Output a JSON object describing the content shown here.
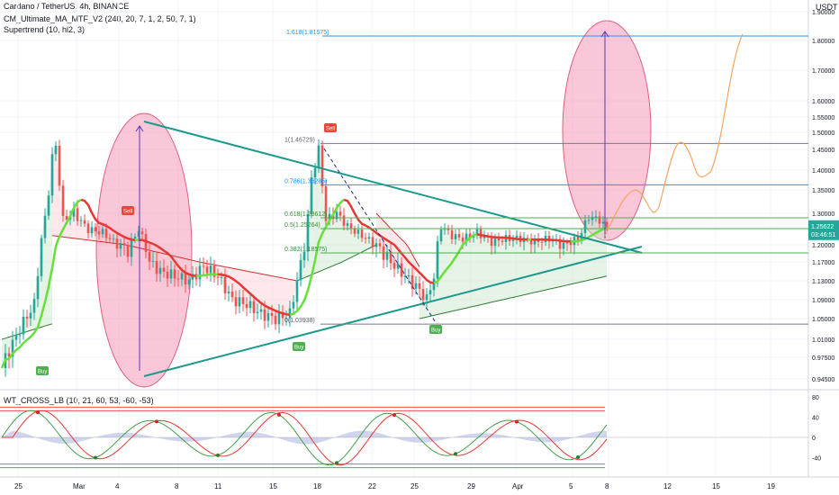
{
  "header": {
    "symbol_line": "Cardano / TetherUS, 4h, BINANCE",
    "indicator_1": "CM_Ultimate_MA_MTF_V2 (240, 20, 7, 1, 2, 50, 7, 1)",
    "indicator_2": "Supertrend (10, hl2, 3)",
    "currency": "USDT"
  },
  "oscillator": {
    "label": "WT_CROSS_LB (10, 21, 60, 53, -60, -53)"
  },
  "colors": {
    "bull_candle": "#26a69a",
    "bear_candle": "#ef5350",
    "ma_up": "#66e03a",
    "ma_down": "#e53935",
    "supertrend_up": "#2e7d32",
    "supertrend_down": "#d32f2f",
    "trendline": "#1b998b",
    "ellipse_fill": "#f48fb1",
    "arrow": "#5e35b1",
    "projection": "#f4a460",
    "price_badge": "#26a69a"
  },
  "chart_data": [
    {
      "type": "candlestick",
      "x_ticks": [
        "25",
        "Mar",
        "4",
        "8",
        "11",
        "15",
        "18",
        "22",
        "25",
        "29",
        "Apr",
        "5",
        "8",
        "12",
        "15",
        "19"
      ],
      "y_ticks": [
        "1.90000",
        "1.80000",
        "1.70000",
        "1.60000",
        "1.55000",
        "1.50000",
        "1.45000",
        "1.40000",
        "1.35000",
        "1.30000",
        "1.25000",
        "1.20000",
        "1.17000",
        "1.13000",
        "1.09000",
        "1.05000",
        "1.01000",
        "0.97500",
        "0.94500"
      ],
      "last_price": "1.25622",
      "price_badge_sub": "03:46:51",
      "fib_levels": [
        {
          "label": "1.618(1.81575)",
          "value": 1.81575
        },
        {
          "label": "1(1.46729)",
          "value": 1.46729
        },
        {
          "label": "0.786(1.36285)",
          "value": 1.36285
        },
        {
          "label": "0.618(1.28612)",
          "value": 1.28612
        },
        {
          "label": "0.5(1.25264)",
          "value": 1.25264
        },
        {
          "label": "0.382(1.18575)",
          "value": 1.18575
        },
        {
          "label": "0(1.03938)",
          "value": 1.03938
        }
      ],
      "signals": [
        {
          "label": "Buy"
        },
        {
          "label": "Sell"
        },
        {
          "label": "Buy"
        },
        {
          "label": "Sell"
        },
        {
          "label": "Buy"
        }
      ]
    },
    {
      "type": "line",
      "y_ticks": [
        "80",
        "40",
        "0",
        "-40"
      ],
      "levels": [
        53,
        60,
        -53,
        -60
      ]
    }
  ]
}
